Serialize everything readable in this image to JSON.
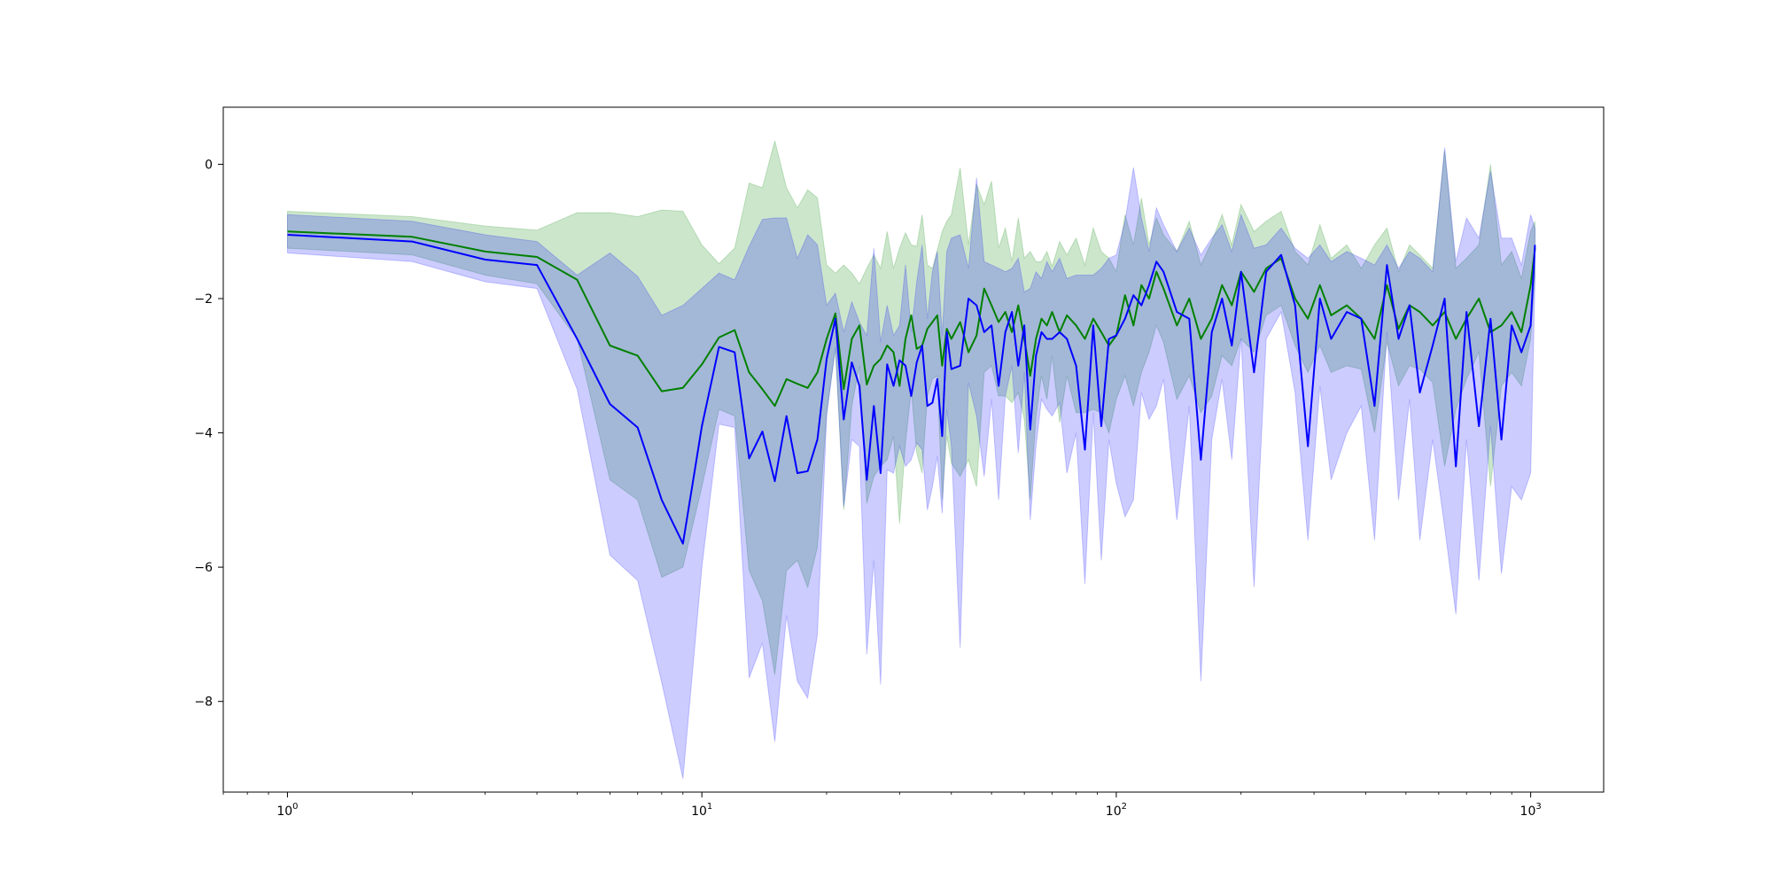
{
  "chart_data": {
    "type": "line",
    "title": "",
    "xlabel": "",
    "ylabel": "",
    "xscale": "log",
    "xlim": [
      0.7,
      1500
    ],
    "ylim": [
      -9.35,
      0.85
    ],
    "grid": false,
    "legend": "none",
    "x_ticks": [
      {
        "base": "10",
        "exp": "0",
        "value": 1
      },
      {
        "base": "10",
        "exp": "1",
        "value": 10
      },
      {
        "base": "10",
        "exp": "2",
        "value": 100
      },
      {
        "base": "10",
        "exp": "3",
        "value": 1000
      }
    ],
    "y_ticks": [
      {
        "label": "0",
        "value": 0
      },
      {
        "label": "−2",
        "value": -2
      },
      {
        "label": "−4",
        "value": -4
      },
      {
        "label": "−6",
        "value": -6
      },
      {
        "label": "−8",
        "value": -8
      }
    ],
    "series": [
      {
        "color": "#008000",
        "band_color": "#008000",
        "band_opacity": 0.2,
        "x": [
          1,
          2,
          3,
          4,
          5,
          6,
          7,
          8,
          9,
          10,
          11,
          12,
          13,
          14,
          15,
          16,
          17,
          18,
          19,
          20,
          21,
          22,
          23,
          24,
          25,
          26,
          27,
          28,
          29,
          30,
          31,
          32,
          33,
          34,
          35,
          36,
          37,
          38,
          39,
          40,
          42,
          44,
          46,
          48,
          50,
          52,
          54,
          56,
          58,
          60,
          62,
          64,
          66,
          68,
          70,
          73,
          76,
          80,
          84,
          88,
          92,
          96,
          100,
          105,
          110,
          115,
          120,
          125,
          130,
          140,
          150,
          160,
          170,
          180,
          190,
          200,
          215,
          230,
          250,
          270,
          290,
          310,
          330,
          360,
          390,
          420,
          450,
          480,
          510,
          540,
          580,
          620,
          660,
          700,
          750,
          800,
          850,
          900,
          950,
          1000,
          1024
        ],
        "values": [
          -1.0,
          -1.08,
          -1.3,
          -1.38,
          -1.72,
          -2.7,
          -2.85,
          -3.38,
          -3.33,
          -2.98,
          -2.58,
          -2.47,
          -3.1,
          -3.35,
          -3.6,
          -3.2,
          -3.27,
          -3.33,
          -3.1,
          -2.6,
          -2.22,
          -3.35,
          -2.6,
          -2.4,
          -3.28,
          -3.0,
          -2.9,
          -2.7,
          -2.8,
          -3.3,
          -2.6,
          -2.25,
          -2.75,
          -2.7,
          -2.45,
          -2.35,
          -2.25,
          -3.0,
          -2.45,
          -2.6,
          -2.35,
          -2.8,
          -2.55,
          -1.85,
          -2.1,
          -2.35,
          -2.2,
          -2.5,
          -2.1,
          -2.6,
          -3.15,
          -2.6,
          -2.3,
          -2.4,
          -2.2,
          -2.5,
          -2.25,
          -2.4,
          -2.6,
          -2.3,
          -2.5,
          -2.7,
          -2.55,
          -1.95,
          -2.4,
          -1.8,
          -2.0,
          -1.6,
          -1.85,
          -2.4,
          -2.0,
          -2.6,
          -2.3,
          -1.8,
          -2.1,
          -1.6,
          -1.9,
          -1.55,
          -1.4,
          -2.0,
          -2.3,
          -1.8,
          -2.25,
          -2.1,
          -2.3,
          -2.6,
          -1.8,
          -2.45,
          -2.1,
          -2.2,
          -2.4,
          -2.2,
          -2.6,
          -2.3,
          -2.0,
          -2.5,
          -2.4,
          -2.2,
          -2.5,
          -1.8,
          -1.25
        ],
        "upper": [
          -0.7,
          -0.78,
          -0.92,
          -0.98,
          -0.72,
          -0.72,
          -0.78,
          -0.68,
          -0.7,
          -1.2,
          -1.48,
          -1.25,
          -0.28,
          -0.35,
          0.35,
          -0.35,
          -0.65,
          -0.38,
          -0.5,
          -1.5,
          -1.62,
          -1.5,
          -1.62,
          -1.78,
          -1.55,
          -1.35,
          -1.55,
          -1.0,
          -1.55,
          -1.25,
          -1.02,
          -1.2,
          -1.22,
          -0.75,
          -1.5,
          -1.55,
          -1.28,
          -1.0,
          -0.85,
          -0.75,
          -0.05,
          -1.2,
          -0.3,
          -0.6,
          -0.25,
          -1.25,
          -0.95,
          -1.45,
          -0.8,
          -1.4,
          -1.3,
          -1.45,
          -1.45,
          -1.3,
          -1.52,
          -1.15,
          -1.35,
          -1.1,
          -1.5,
          -0.95,
          -1.3,
          -1.4,
          -1.6,
          -0.75,
          -1.2,
          -0.5,
          -1.2,
          -0.8,
          -1.05,
          -1.3,
          -0.85,
          -1.5,
          -1.15,
          -0.75,
          -1.2,
          -0.6,
          -1.0,
          -0.85,
          -0.7,
          -1.3,
          -1.5,
          -0.9,
          -1.4,
          -1.2,
          -1.55,
          -1.2,
          -0.95,
          -1.6,
          -1.2,
          -1.35,
          -1.55,
          0.2,
          -1.55,
          -1.4,
          -1.2,
          0.0,
          -1.5,
          -1.3,
          -1.7,
          -1.0,
          -0.85
        ],
        "lower": [
          -1.25,
          -1.35,
          -1.65,
          -1.78,
          -2.6,
          -4.7,
          -5.0,
          -6.15,
          -6.0,
          -4.8,
          -3.65,
          -3.75,
          -6.05,
          -6.5,
          -7.6,
          -6.05,
          -5.9,
          -6.3,
          -5.7,
          -3.7,
          -2.75,
          -5.15,
          -3.6,
          -3.0,
          -5.05,
          -4.65,
          -4.5,
          -4.4,
          -4.05,
          -5.35,
          -4.15,
          -3.35,
          -4.3,
          -4.6,
          -3.45,
          -3.2,
          -3.15,
          -5.0,
          -4.05,
          -4.45,
          -4.65,
          -4.4,
          -4.8,
          -3.1,
          -3.0,
          -3.45,
          -3.45,
          -3.55,
          -3.4,
          -3.8,
          -5.0,
          -3.75,
          -3.15,
          -3.5,
          -2.85,
          -3.85,
          -3.15,
          -3.7,
          -3.7,
          -3.65,
          -3.7,
          -4.0,
          -3.5,
          -3.15,
          -3.6,
          -3.1,
          -2.8,
          -2.4,
          -2.65,
          -3.5,
          -3.15,
          -3.7,
          -3.45,
          -2.85,
          -3.0,
          -2.6,
          -2.8,
          -2.25,
          -2.1,
          -2.7,
          -3.1,
          -2.7,
          -3.1,
          -3.0,
          -3.05,
          -4.0,
          -2.65,
          -3.3,
          -3.0,
          -3.05,
          -3.25,
          -4.5,
          -3.65,
          -3.2,
          -2.8,
          -4.8,
          -3.3,
          -3.1,
          -3.3,
          -2.6,
          -1.65
        ]
      },
      {
        "color": "#0000ff",
        "band_color": "#0000ff",
        "band_opacity": 0.2,
        "x": [
          1,
          2,
          3,
          4,
          5,
          6,
          7,
          8,
          9,
          10,
          11,
          12,
          13,
          14,
          15,
          16,
          17,
          18,
          19,
          20,
          21,
          22,
          23,
          24,
          25,
          26,
          27,
          28,
          29,
          30,
          31,
          32,
          33,
          34,
          35,
          36,
          37,
          38,
          39,
          40,
          42,
          44,
          46,
          48,
          50,
          52,
          54,
          56,
          58,
          60,
          62,
          64,
          66,
          68,
          70,
          73,
          76,
          80,
          84,
          88,
          92,
          96,
          100,
          105,
          110,
          115,
          120,
          125,
          130,
          140,
          150,
          160,
          170,
          180,
          190,
          200,
          215,
          230,
          250,
          270,
          290,
          310,
          330,
          360,
          390,
          420,
          450,
          480,
          510,
          540,
          580,
          620,
          660,
          700,
          750,
          800,
          850,
          900,
          950,
          1000,
          1024
        ],
        "values": [
          -1.05,
          -1.15,
          -1.42,
          -1.5,
          -2.6,
          -3.57,
          -3.92,
          -5.0,
          -5.65,
          -3.9,
          -2.72,
          -2.8,
          -4.38,
          -3.98,
          -4.72,
          -3.75,
          -4.6,
          -4.57,
          -4.1,
          -2.9,
          -2.3,
          -3.8,
          -2.95,
          -3.3,
          -4.7,
          -3.6,
          -4.6,
          -2.98,
          -3.3,
          -2.92,
          -3.0,
          -3.45,
          -2.95,
          -2.7,
          -3.6,
          -3.55,
          -3.2,
          -4.05,
          -2.5,
          -3.05,
          -3.0,
          -2.0,
          -2.1,
          -2.5,
          -2.4,
          -3.3,
          -2.5,
          -2.2,
          -3.0,
          -2.4,
          -3.95,
          -2.85,
          -2.5,
          -2.6,
          -2.6,
          -2.5,
          -2.6,
          -3.0,
          -4.25,
          -2.4,
          -3.9,
          -2.6,
          -2.55,
          -2.3,
          -1.95,
          -2.1,
          -1.8,
          -1.45,
          -1.6,
          -2.2,
          -2.3,
          -4.4,
          -2.5,
          -2.0,
          -2.7,
          -1.6,
          -3.1,
          -1.6,
          -1.35,
          -2.1,
          -4.2,
          -2.0,
          -2.6,
          -2.2,
          -2.3,
          -3.6,
          -1.5,
          -2.6,
          -2.1,
          -3.4,
          -2.7,
          -2.0,
          -4.5,
          -2.2,
          -3.9,
          -2.3,
          -4.1,
          -2.4,
          -2.8,
          -2.4,
          -1.2
        ],
        "upper": [
          -0.75,
          -0.85,
          -1.05,
          -1.15,
          -1.65,
          -1.32,
          -1.67,
          -2.25,
          -2.1,
          -1.85,
          -1.62,
          -1.72,
          -1.22,
          -0.82,
          -0.8,
          -0.8,
          -1.4,
          -1.05,
          -1.2,
          -2.1,
          -1.92,
          -2.5,
          -2.05,
          -2.35,
          -2.55,
          -1.25,
          -2.65,
          -2.1,
          -2.55,
          -2.4,
          -1.5,
          -2.5,
          -1.75,
          -1.2,
          -2.3,
          -1.6,
          -1.3,
          -2.55,
          -1.3,
          -1.1,
          -1.05,
          -1.55,
          -0.2,
          -1.45,
          -1.5,
          -1.55,
          -1.6,
          -1.55,
          -1.4,
          -1.9,
          -1.85,
          -1.6,
          -1.7,
          -1.45,
          -1.6,
          -1.4,
          -1.7,
          -1.65,
          -1.65,
          -1.65,
          -1.55,
          -1.4,
          -1.35,
          -0.85,
          -0.05,
          -0.8,
          -1.3,
          -0.65,
          -0.9,
          -1.3,
          -0.95,
          -1.35,
          -1.1,
          -0.9,
          -1.3,
          -0.75,
          -1.25,
          -1.2,
          -0.95,
          -1.25,
          -1.4,
          -1.2,
          -1.45,
          -1.3,
          -1.4,
          -1.5,
          -1.2,
          -1.55,
          -1.3,
          -1.4,
          -1.6,
          0.25,
          -1.45,
          -0.8,
          -1.1,
          -0.1,
          -1.1,
          -1.1,
          -1.5,
          -0.75,
          -0.95
        ],
        "lower": [
          -1.32,
          -1.45,
          -1.75,
          -1.85,
          -3.35,
          -5.82,
          -6.2,
          -7.72,
          -9.15,
          -6.0,
          -3.87,
          -3.92,
          -7.65,
          -7.13,
          -8.6,
          -6.72,
          -7.7,
          -7.95,
          -7.0,
          -3.75,
          -2.72,
          -5.1,
          -4.1,
          -4.2,
          -7.3,
          -5.9,
          -7.75,
          -4.55,
          -4.6,
          -4.2,
          -4.5,
          -4.4,
          -4.15,
          -4.25,
          -5.15,
          -4.8,
          -4.35,
          -5.2,
          -3.65,
          -4.2,
          -7.2,
          -3.25,
          -3.75,
          -4.65,
          -3.5,
          -5.0,
          -3.45,
          -3.0,
          -4.3,
          -3.1,
          -5.3,
          -4.2,
          -3.5,
          -3.65,
          -3.75,
          -3.55,
          -4.6,
          -4.0,
          -6.25,
          -3.7,
          -5.9,
          -4.1,
          -4.75,
          -5.25,
          -5.0,
          -3.4,
          -3.8,
          -3.6,
          -3.2,
          -5.3,
          -3.6,
          -7.7,
          -4.1,
          -3.2,
          -4.4,
          -2.6,
          -6.3,
          -2.6,
          -2.2,
          -3.4,
          -5.6,
          -3.3,
          -4.7,
          -4.0,
          -3.6,
          -5.6,
          -2.5,
          -5.0,
          -3.5,
          -5.6,
          -4.1,
          -5.4,
          -6.7,
          -4.1,
          -6.2,
          -3.9,
          -6.1,
          -4.8,
          -5.0,
          -4.6,
          -1.7
        ]
      }
    ]
  }
}
